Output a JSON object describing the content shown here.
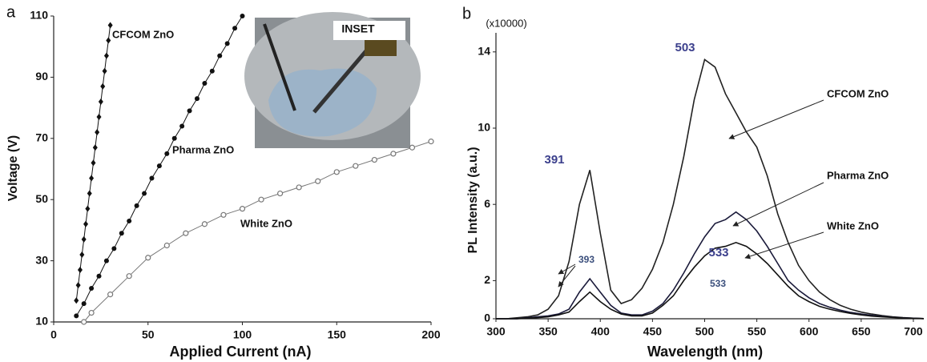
{
  "chart_data": [
    {
      "type": "line",
      "panel_label": "a",
      "xlabel": "Applied Current (nA)",
      "ylabel": "Voltage (V)",
      "inset_label": "INSET",
      "xlim": [
        0,
        200
      ],
      "xticks": [
        0,
        50,
        100,
        150,
        200
      ],
      "ylim": [
        10,
        110
      ],
      "yticks": [
        10,
        30,
        50,
        70,
        90,
        110
      ],
      "series": [
        {
          "name": "CFCOM ZnO",
          "color": "#111111",
          "marker": "diamond",
          "x": [
            12,
            13,
            14,
            15,
            16,
            17,
            18,
            19,
            20,
            21,
            22,
            23,
            24,
            25,
            26,
            27,
            28,
            29,
            30
          ],
          "values": [
            17,
            22,
            27,
            32,
            37,
            42,
            47,
            52,
            57,
            62,
            67,
            72,
            77,
            82,
            87,
            92,
            97,
            102,
            107
          ]
        },
        {
          "name": "Pharma ZnO",
          "color": "#111111",
          "marker": "circle",
          "x": [
            12,
            16,
            20,
            24,
            28,
            32,
            36,
            40,
            44,
            48,
            52,
            56,
            60,
            64,
            68,
            72,
            76,
            80,
            84,
            88,
            92,
            96,
            100
          ],
          "values": [
            12,
            16,
            21,
            25,
            30,
            34,
            39,
            43,
            48,
            52,
            57,
            61,
            65,
            70,
            74,
            79,
            83,
            88,
            92,
            97,
            101,
            106,
            110
          ]
        },
        {
          "name": "White ZnO",
          "color": "#777777",
          "marker": "open-circle",
          "x": [
            16,
            20,
            30,
            40,
            50,
            60,
            70,
            80,
            90,
            100,
            110,
            120,
            130,
            140,
            150,
            160,
            170,
            180,
            190,
            200
          ],
          "values": [
            10,
            13,
            19,
            25,
            31,
            35,
            39,
            42,
            45,
            47,
            50,
            52,
            54,
            56,
            59,
            61,
            63,
            65,
            67,
            69
          ]
        }
      ]
    },
    {
      "type": "line",
      "panel_label": "b",
      "xlabel": "Wavelength (nm)",
      "ylabel": "PL Intensity (a.u.)",
      "y_multiplier_label": "(x10000)",
      "xlim": [
        300,
        710
      ],
      "xticks": [
        300,
        350,
        400,
        450,
        500,
        550,
        600,
        650,
        700
      ],
      "ylim": [
        0,
        15
      ],
      "yticks": [
        0,
        2,
        6,
        10,
        14
      ],
      "x": [
        300,
        310,
        320,
        330,
        340,
        350,
        360,
        370,
        380,
        390,
        400,
        410,
        420,
        430,
        440,
        450,
        460,
        470,
        480,
        490,
        500,
        510,
        520,
        530,
        540,
        550,
        560,
        570,
        580,
        590,
        600,
        610,
        620,
        630,
        640,
        650,
        660,
        670,
        680,
        690,
        700,
        710
      ],
      "series": [
        {
          "name": "CFCOM ZnO",
          "color": "#222222",
          "values": [
            0,
            0,
            0.05,
            0.1,
            0.2,
            0.5,
            1.2,
            3,
            6,
            7.8,
            4.5,
            1.5,
            0.8,
            1,
            1.6,
            2.6,
            4,
            6,
            8.5,
            11.5,
            13.6,
            13.2,
            11.8,
            10.8,
            9.8,
            9,
            7.5,
            5.5,
            4,
            2.8,
            2,
            1.4,
            1,
            0.7,
            0.5,
            0.35,
            0.25,
            0.17,
            0.1,
            0.06,
            0.03,
            0.01
          ]
        },
        {
          "name": "Pharma ZnO",
          "color": "#1a1a3a",
          "values": [
            0,
            0,
            0,
            0.05,
            0.1,
            0.15,
            0.25,
            0.5,
            1.4,
            2.1,
            1.4,
            0.7,
            0.3,
            0.2,
            0.2,
            0.4,
            0.8,
            1.5,
            2.4,
            3.4,
            4.3,
            5,
            5.2,
            5.6,
            5.2,
            4.6,
            3.8,
            2.9,
            2,
            1.5,
            1.1,
            0.8,
            0.6,
            0.45,
            0.33,
            0.25,
            0.18,
            0.12,
            0.08,
            0.05,
            0.03,
            0.01
          ]
        },
        {
          "name": "White ZnO",
          "color": "#111111",
          "values": [
            0,
            0,
            0,
            0.03,
            0.06,
            0.1,
            0.2,
            0.35,
            0.9,
            1.4,
            0.9,
            0.5,
            0.25,
            0.15,
            0.15,
            0.3,
            0.7,
            1.2,
            2,
            2.7,
            3.3,
            3.7,
            3.8,
            4,
            3.8,
            3.4,
            2.9,
            2.3,
            1.7,
            1.2,
            0.9,
            0.65,
            0.5,
            0.38,
            0.28,
            0.2,
            0.14,
            0.1,
            0.07,
            0.04,
            0.02,
            0.01
          ]
        }
      ],
      "annotations": [
        "391",
        "503",
        "533",
        "533",
        "393"
      ]
    }
  ]
}
